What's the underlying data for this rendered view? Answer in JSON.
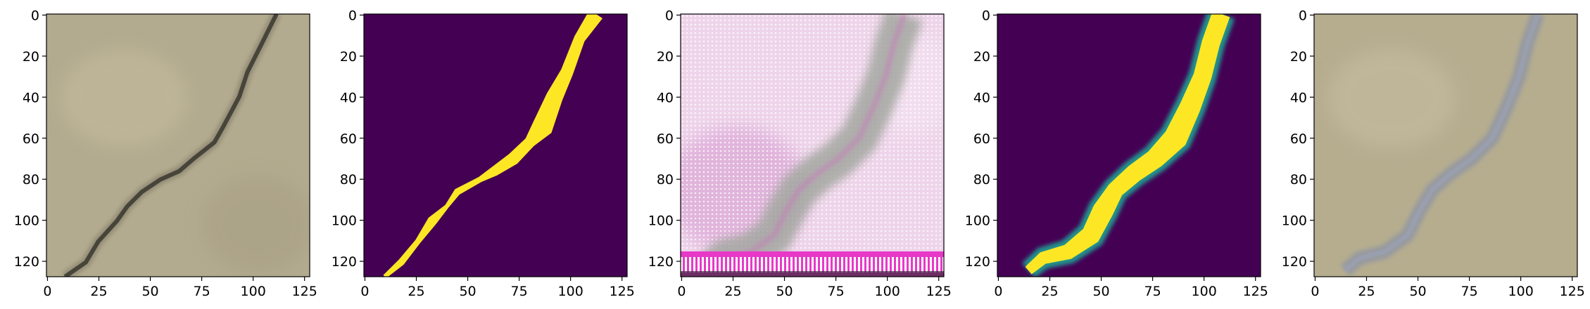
{
  "figure": {
    "panel_count": 5
  },
  "chart_data": [
    {
      "type": "heatmap",
      "content": "photo",
      "description": "gray concrete surface with a dark diagonal crack",
      "xlim": [
        0,
        127
      ],
      "ylim": [
        127,
        0
      ],
      "xticks": [
        "0",
        "25",
        "50",
        "75",
        "100",
        "125"
      ],
      "yticks": [
        "0",
        "20",
        "40",
        "60",
        "80",
        "100",
        "120"
      ],
      "colors": {
        "background": "#b3ab8f",
        "feature": "#47443a"
      }
    },
    {
      "type": "heatmap",
      "content": "binary-mask",
      "colormap": "viridis",
      "xlim": [
        0,
        127
      ],
      "ylim": [
        127,
        0
      ],
      "xticks": [
        "0",
        "25",
        "50",
        "75",
        "100",
        "125"
      ],
      "yticks": [
        "0",
        "20",
        "40",
        "60",
        "80",
        "100",
        "120"
      ],
      "colors": {
        "background": "#440154",
        "feature": "#fde725"
      },
      "path": [
        [
          112,
          0
        ],
        [
          104,
          12
        ],
        [
          98,
          28
        ],
        [
          92,
          40
        ],
        [
          86,
          55
        ],
        [
          80,
          62
        ],
        [
          72,
          70
        ],
        [
          63,
          76
        ],
        [
          56,
          80
        ],
        [
          45,
          86
        ],
        [
          40,
          93
        ],
        [
          33,
          100
        ],
        [
          26,
          110
        ],
        [
          18,
          120
        ],
        [
          10,
          127
        ]
      ]
    },
    {
      "type": "heatmap",
      "content": "generated-image",
      "description": "pink textured surface with gray diagonal band and bright stripe pattern at bottom",
      "xlim": [
        0,
        127
      ],
      "ylim": [
        127,
        0
      ],
      "xticks": [
        "0",
        "25",
        "50",
        "75",
        "100",
        "125"
      ],
      "yticks": [
        "0",
        "20",
        "40",
        "60",
        "80",
        "100",
        "120"
      ],
      "colors": {
        "background": "#eed4ea",
        "feature": "#a4a7a1",
        "stripe": "#e838c8"
      }
    },
    {
      "type": "heatmap",
      "content": "prediction-map",
      "colormap": "viridis",
      "xlim": [
        0,
        127
      ],
      "ylim": [
        127,
        0
      ],
      "xticks": [
        "0",
        "25",
        "50",
        "75",
        "100",
        "125"
      ],
      "yticks": [
        "0",
        "20",
        "40",
        "60",
        "80",
        "100",
        "120"
      ],
      "colors": {
        "background": "#440154",
        "feature": "#fde725",
        "edge": "#21918c"
      },
      "path": [
        [
          108,
          0
        ],
        [
          103,
          14
        ],
        [
          99,
          30
        ],
        [
          93,
          45
        ],
        [
          86,
          60
        ],
        [
          76,
          70
        ],
        [
          66,
          77
        ],
        [
          57,
          85
        ],
        [
          51,
          95
        ],
        [
          45,
          107
        ],
        [
          34,
          115
        ],
        [
          22,
          118
        ],
        [
          15,
          124
        ]
      ]
    },
    {
      "type": "heatmap",
      "content": "photo",
      "description": "tan surface with a faint bluish diagonal crack",
      "xlim": [
        0,
        127
      ],
      "ylim": [
        127,
        0
      ],
      "xticks": [
        "0",
        "25",
        "50",
        "75",
        "100",
        "125"
      ],
      "yticks": [
        "0",
        "20",
        "40",
        "60",
        "80",
        "100",
        "120"
      ],
      "colors": {
        "background": "#b6ad8f",
        "feature": "#8b93a6"
      }
    }
  ]
}
